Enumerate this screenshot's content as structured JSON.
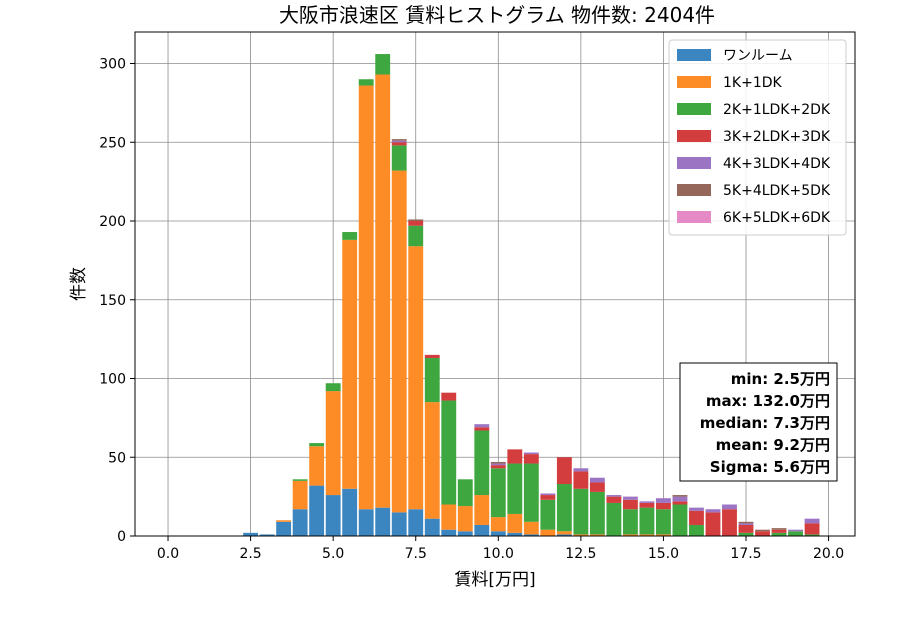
{
  "chart_data": {
    "type": "bar",
    "stacked": true,
    "title": "大阪市浪速区 賃料ヒストグラム  物件数: 2404件",
    "xlabel": "賃料[万円]",
    "ylabel": "件数",
    "xlim": [
      -1.0,
      20.8
    ],
    "ylim": [
      0,
      320
    ],
    "xticks": [
      "0.0",
      "2.5",
      "5.0",
      "7.5",
      "10.0",
      "12.5",
      "15.0",
      "17.5",
      "20.0"
    ],
    "yticks": [
      "0",
      "50",
      "100",
      "150",
      "200",
      "250",
      "300"
    ],
    "grid": true,
    "legend_position": "top-right",
    "bin_width": 0.5,
    "x": [
      2.5,
      3.0,
      3.5,
      4.0,
      4.5,
      5.0,
      5.5,
      6.0,
      6.5,
      7.0,
      7.5,
      8.0,
      8.5,
      9.0,
      9.5,
      10.0,
      10.5,
      11.0,
      11.5,
      12.0,
      12.5,
      13.0,
      13.5,
      14.0,
      14.5,
      15.0,
      15.5,
      16.0,
      16.5,
      17.0,
      17.5,
      18.0,
      18.5,
      19.0,
      19.5
    ],
    "series": [
      {
        "name": "ワンルーム",
        "color": "#3b86c1",
        "values": [
          2,
          1,
          9,
          17,
          32,
          26,
          30,
          17,
          18,
          15,
          17,
          11,
          4,
          3,
          7,
          3,
          2,
          1,
          0,
          1,
          0,
          0,
          0,
          0,
          0,
          0,
          0,
          0,
          0,
          0,
          0,
          0,
          0,
          0,
          0
        ]
      },
      {
        "name": "1K+1DK",
        "color": "#fd8b26",
        "values": [
          0,
          0,
          1,
          18,
          25,
          66,
          158,
          269,
          275,
          217,
          167,
          74,
          16,
          16,
          19,
          9,
          12,
          8,
          4,
          2,
          1,
          1,
          0,
          1,
          1,
          1,
          0,
          0,
          0,
          0,
          0,
          0,
          0,
          0,
          0
        ]
      },
      {
        "name": "2K+1LDK+2DK",
        "color": "#3fa73f",
        "values": [
          0,
          0,
          0,
          1,
          2,
          5,
          5,
          4,
          13,
          16,
          13,
          28,
          66,
          17,
          41,
          31,
          32,
          37,
          19,
          30,
          29,
          27,
          21,
          16,
          17,
          16,
          20,
          7,
          0,
          0,
          2,
          0,
          2,
          3,
          1
        ]
      },
      {
        "name": "3K+2LDK+3DK",
        "color": "#d43d3e",
        "values": [
          0,
          0,
          0,
          0,
          0,
          0,
          0,
          0,
          0,
          2,
          3,
          2,
          5,
          0,
          2,
          2,
          9,
          6,
          3,
          17,
          11,
          6,
          4,
          6,
          3,
          4,
          2,
          9,
          15,
          17,
          5,
          3,
          2,
          0,
          7
        ]
      },
      {
        "name": "4K+3LDK+4DK",
        "color": "#9c74c4",
        "values": [
          0,
          0,
          0,
          0,
          0,
          0,
          0,
          0,
          0,
          1,
          0,
          0,
          0,
          0,
          2,
          1,
          0,
          1,
          1,
          0,
          2,
          3,
          1,
          2,
          1,
          3,
          3,
          2,
          2,
          3,
          1,
          0,
          0,
          1,
          3
        ]
      },
      {
        "name": "5K+4LDK+5DK",
        "color": "#95675a",
        "values": [
          0,
          0,
          0,
          0,
          0,
          0,
          0,
          0,
          0,
          1,
          1,
          0,
          0,
          0,
          0,
          1,
          0,
          0,
          0,
          0,
          0,
          0,
          0,
          0,
          0,
          0,
          1,
          0,
          0,
          0,
          1,
          1,
          1,
          0,
          0
        ]
      },
      {
        "name": "6K+5LDK+6DK",
        "color": "#e589c7",
        "values": [
          0,
          0,
          0,
          0,
          0,
          0,
          0,
          0,
          0,
          0,
          0,
          0,
          0,
          0,
          0,
          0,
          0,
          0,
          0,
          0,
          0,
          0,
          0,
          0,
          0,
          0,
          0,
          0,
          0,
          0,
          0,
          0,
          0,
          0,
          0
        ]
      }
    ],
    "stats": [
      "min: 2.5万円",
      "max: 132.0万円",
      "median: 7.3万円",
      "mean: 9.2万円",
      "Sigma: 5.6万円"
    ]
  }
}
